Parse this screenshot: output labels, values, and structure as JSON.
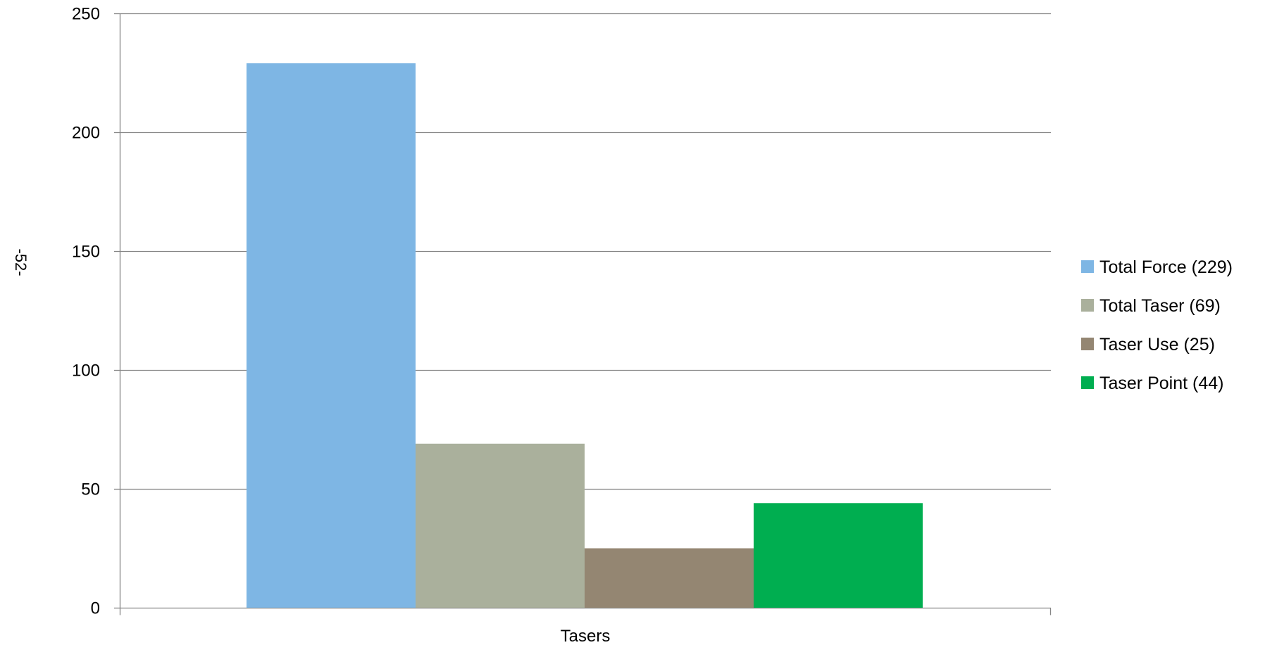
{
  "page": {
    "side_label": "-52-"
  },
  "chart_data": {
    "type": "bar",
    "categories": [
      "Tasers"
    ],
    "series": [
      {
        "name": "Total Force (229)",
        "values": [
          229
        ],
        "color": "#7EB6E4"
      },
      {
        "name": "Total Taser (69)",
        "values": [
          69
        ],
        "color": "#AAB09C"
      },
      {
        "name": "Taser Use (25)",
        "values": [
          25
        ],
        "color": "#948672"
      },
      {
        "name": "Taser Point (44)",
        "values": [
          44
        ],
        "color": "#00AE50"
      }
    ],
    "title": "",
    "xlabel": "",
    "ylabel": "",
    "ylim": [
      0,
      250
    ],
    "yticks": [
      0,
      50,
      100,
      150,
      200,
      250
    ],
    "ytick_labels": [
      "0",
      "50",
      "100",
      "150",
      "200",
      "250"
    ],
    "grid": true,
    "legend_position": "right"
  }
}
